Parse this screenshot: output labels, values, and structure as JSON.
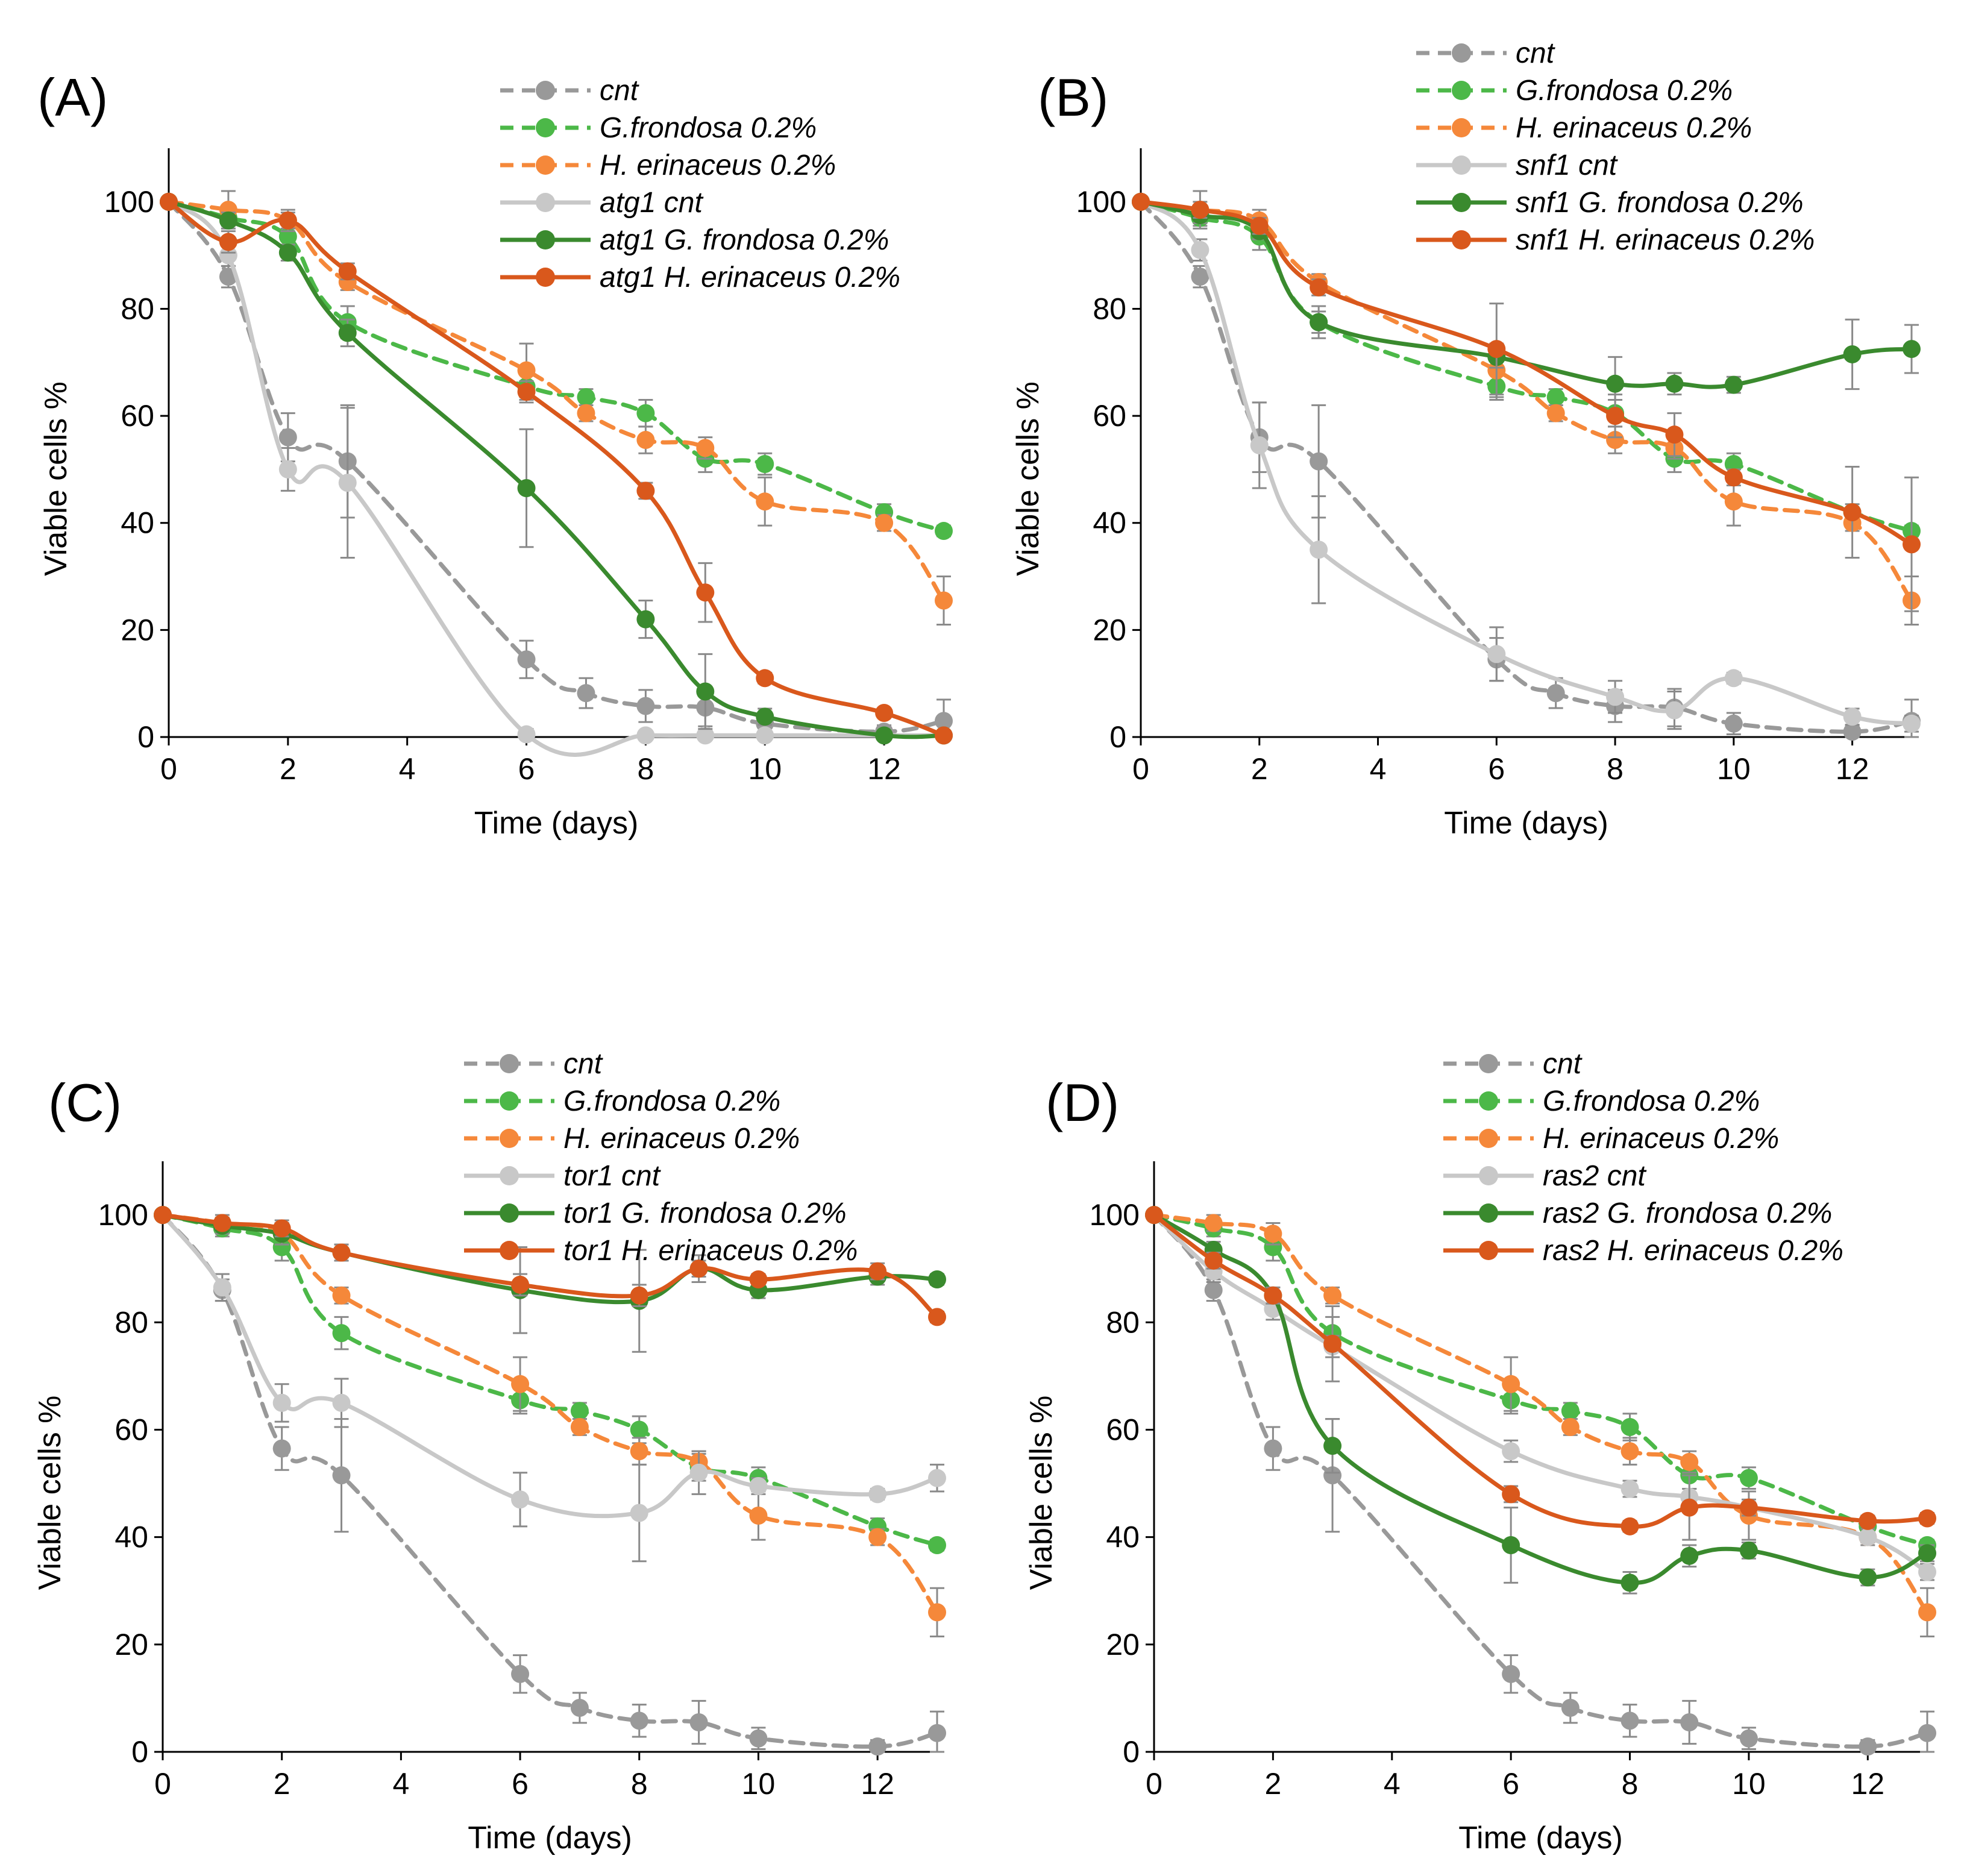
{
  "chart_data": [
    {
      "type": "line",
      "panel_label": "(A)",
      "xlabel": "Time (days)",
      "ylabel": "Viable cells %",
      "xlim": [
        0,
        13
      ],
      "ylim": [
        0,
        110
      ],
      "xticks": [
        "0",
        "2",
        "4",
        "6",
        "8",
        "10",
        "12"
      ],
      "yticks": [
        "0",
        "20",
        "40",
        "60",
        "80",
        "100"
      ],
      "legend_position": "top-right",
      "series": [
        {
          "name": "cnt",
          "color": "#999999",
          "dashed": true,
          "x": [
            0,
            1,
            2,
            3,
            6,
            7,
            8,
            9,
            10,
            12,
            13
          ],
          "y": [
            100,
            86,
            56,
            51.5,
            14.5,
            8.2,
            5.8,
            5.5,
            2.5,
            1,
            3
          ],
          "err": [
            0,
            2,
            4.5,
            10.5,
            3.5,
            2.8,
            3,
            3.5,
            2,
            1.2,
            4
          ]
        },
        {
          "name": "G.frondosa 0.2%",
          "color": "#4cb848",
          "dashed": true,
          "x": [
            0,
            1,
            2,
            3,
            6,
            7,
            8,
            9,
            10,
            12,
            13
          ],
          "y": [
            100,
            97,
            93.5,
            77.5,
            65.5,
            63.5,
            60.5,
            52,
            51,
            42,
            38.5
          ],
          "err": [
            0,
            1.5,
            2.5,
            3,
            2.5,
            1.5,
            2.5,
            2.5,
            2,
            1.5,
            1
          ]
        },
        {
          "name": "H. erinaceus 0.2%",
          "color": "#f5883a",
          "dashed": true,
          "x": [
            0,
            1,
            2,
            3,
            6,
            7,
            8,
            9,
            10,
            12,
            13
          ],
          "y": [
            100,
            98.5,
            96.5,
            85,
            68.5,
            60.5,
            55.5,
            54,
            44,
            40,
            25.5
          ],
          "err": [
            0,
            3.5,
            2,
            1.5,
            5,
            1.5,
            2.5,
            2,
            4.5,
            1.5,
            4.5
          ]
        },
        {
          "name": "atg1 cnt",
          "color": "#c8c8c8",
          "dashed": false,
          "x": [
            0,
            1,
            2,
            3,
            6,
            8,
            9,
            10,
            12,
            13
          ],
          "y": [
            100,
            90,
            50,
            47.5,
            0.5,
            0.3,
            0.3,
            0.3,
            0.3,
            0.3
          ],
          "err": [
            0,
            2,
            4,
            14,
            1,
            0.5,
            0.5,
            0.5,
            0.5,
            0.5
          ]
        },
        {
          "name": "atg1 G. frondosa 0.2%",
          "color": "#3a8a2e",
          "dashed": false,
          "x": [
            0,
            1,
            2,
            3,
            6,
            8,
            9,
            10,
            12,
            13
          ],
          "y": [
            100,
            96.5,
            90.5,
            75.5,
            46.5,
            22,
            8.5,
            3.8,
            0.3,
            0.3
          ],
          "err": [
            0,
            1.5,
            1.5,
            2.5,
            11,
            3.5,
            7,
            1.5,
            0.5,
            0.5
          ]
        },
        {
          "name": "atg1 H. erinaceus 0.2%",
          "color": "#d9581c",
          "dashed": false,
          "x": [
            0,
            1,
            2,
            3,
            6,
            8,
            9,
            10,
            12,
            13
          ],
          "y": [
            100,
            92.5,
            96.5,
            87,
            64.5,
            46,
            27,
            11,
            4.5,
            0.3
          ],
          "err": [
            0,
            2,
            1.5,
            1.5,
            2,
            1.5,
            5.5,
            1,
            0.5,
            0.5
          ]
        }
      ]
    },
    {
      "type": "line",
      "panel_label": "(B)",
      "xlabel": "Time (days)",
      "ylabel": "Viable cells %",
      "xlim": [
        0,
        13
      ],
      "ylim": [
        0,
        110
      ],
      "xticks": [
        "0",
        "2",
        "4",
        "6",
        "8",
        "10",
        "12"
      ],
      "yticks": [
        "0",
        "20",
        "40",
        "60",
        "80",
        "100"
      ],
      "legend_position": "top-right",
      "series": [
        {
          "name": "cnt",
          "color": "#999999",
          "dashed": true,
          "x": [
            0,
            1,
            2,
            3,
            6,
            7,
            8,
            9,
            10,
            12,
            13
          ],
          "y": [
            100,
            86,
            56,
            51.5,
            14.5,
            8.2,
            5.8,
            5.5,
            2.5,
            1,
            3
          ],
          "err": [
            0,
            2,
            6.5,
            10.5,
            4,
            2.8,
            3,
            3.5,
            2,
            1.2,
            4
          ]
        },
        {
          "name": "G.frondosa 0.2%",
          "color": "#4cb848",
          "dashed": true,
          "x": [
            0,
            1,
            2,
            3,
            6,
            7,
            8,
            9,
            10,
            12,
            13
          ],
          "y": [
            100,
            97,
            93.5,
            77.5,
            65.5,
            63.5,
            60.5,
            52,
            51,
            42,
            38.5
          ],
          "err": [
            0,
            1.5,
            2.5,
            3,
            2.5,
            1.5,
            2.5,
            2.5,
            2,
            1.5,
            1
          ]
        },
        {
          "name": "H. erinaceus 0.2%",
          "color": "#f5883a",
          "dashed": true,
          "x": [
            0,
            1,
            2,
            3,
            6,
            7,
            8,
            9,
            10,
            12,
            13
          ],
          "y": [
            100,
            98.5,
            96.5,
            85,
            68.5,
            60.5,
            55.5,
            54,
            44,
            40,
            25.5
          ],
          "err": [
            0,
            3.5,
            2,
            1.5,
            5,
            1.5,
            2.5,
            2,
            4.5,
            1.5,
            4.5
          ]
        },
        {
          "name": "snf1 cnt",
          "color": "#c8c8c8",
          "dashed": false,
          "x": [
            0,
            1,
            2,
            3,
            6,
            8,
            9,
            10,
            12,
            13
          ],
          "y": [
            100,
            91,
            54.5,
            35,
            15.5,
            7.5,
            5,
            11,
            3.8,
            2.5
          ],
          "err": [
            0,
            2,
            8,
            10,
            5,
            3,
            3.5,
            1,
            1.5,
            1.5
          ]
        },
        {
          "name": "snf1 G. frondosa 0.2%",
          "color": "#3a8a2e",
          "dashed": false,
          "x": [
            0,
            1,
            2,
            3,
            6,
            8,
            9,
            10,
            12,
            13
          ],
          "y": [
            100,
            97.5,
            94.5,
            77.5,
            71,
            66,
            66,
            65.8,
            71.5,
            72.5
          ],
          "err": [
            0,
            1.5,
            1.5,
            2,
            2,
            5,
            2,
            1.5,
            6.5,
            4.5
          ]
        },
        {
          "name": "snf1 H. erinaceus 0.2%",
          "color": "#d9581c",
          "dashed": false,
          "x": [
            0,
            1,
            2,
            3,
            6,
            8,
            9,
            10,
            12,
            13
          ],
          "y": [
            100,
            98.5,
            95.5,
            84,
            72.5,
            60,
            56.5,
            48.5,
            42,
            36
          ],
          "err": [
            0,
            1.5,
            1.5,
            1.5,
            8.5,
            4,
            4,
            1.5,
            8.5,
            12.5
          ]
        }
      ]
    },
    {
      "type": "line",
      "panel_label": "(C)",
      "xlabel": "Time (days)",
      "ylabel": "Viable cells %",
      "xlim": [
        0,
        13
      ],
      "ylim": [
        0,
        110
      ],
      "xticks": [
        "0",
        "2",
        "4",
        "6",
        "8",
        "10",
        "12"
      ],
      "yticks": [
        "0",
        "20",
        "40",
        "60",
        "80",
        "100"
      ],
      "legend_position": "top-right",
      "series": [
        {
          "name": "cnt",
          "color": "#999999",
          "dashed": true,
          "x": [
            0,
            1,
            2,
            3,
            6,
            7,
            8,
            9,
            10,
            12,
            13
          ],
          "y": [
            100,
            86,
            56.5,
            51.5,
            14.5,
            8.2,
            5.8,
            5.5,
            2.5,
            1,
            3.5
          ],
          "err": [
            0,
            2,
            4,
            10.5,
            3.5,
            2.8,
            3,
            4,
            2,
            1.2,
            4
          ]
        },
        {
          "name": "G.frondosa 0.2%",
          "color": "#4cb848",
          "dashed": true,
          "x": [
            0,
            1,
            2,
            3,
            6,
            7,
            8,
            9,
            10,
            12,
            13
          ],
          "y": [
            100,
            97.5,
            94,
            78,
            65.5,
            63.5,
            60,
            53,
            51,
            42,
            38.5
          ],
          "err": [
            0,
            1.5,
            2.5,
            3,
            2.5,
            1.5,
            2.5,
            2.5,
            2,
            1.5,
            1
          ]
        },
        {
          "name": "H. erinaceus 0.2%",
          "color": "#f5883a",
          "dashed": true,
          "x": [
            0,
            1,
            2,
            3,
            6,
            7,
            8,
            9,
            10,
            12,
            13
          ],
          "y": [
            100,
            98.5,
            96.5,
            85,
            68.5,
            60.5,
            56,
            54,
            44,
            40,
            26
          ],
          "err": [
            0,
            1.5,
            2,
            1.5,
            5,
            1.5,
            2.5,
            2,
            4.5,
            1.5,
            4.5
          ]
        },
        {
          "name": "tor1 cnt",
          "color": "#c8c8c8",
          "dashed": false,
          "x": [
            0,
            1,
            2,
            3,
            6,
            8,
            9,
            10,
            12,
            13
          ],
          "y": [
            100,
            86.5,
            65,
            65,
            47,
            44.5,
            52,
            49.5,
            48,
            51
          ],
          "err": [
            0,
            2.5,
            3.5,
            4.5,
            5,
            9,
            4,
            1.5,
            1,
            2.5
          ]
        },
        {
          "name": "tor1 G. frondosa 0.2%",
          "color": "#3a8a2e",
          "dashed": false,
          "x": [
            0,
            1,
            2,
            3,
            6,
            8,
            9,
            10,
            12,
            13
          ],
          "y": [
            100,
            98,
            96.5,
            93,
            86,
            84,
            90,
            86,
            88.5,
            88
          ],
          "err": [
            0,
            1.5,
            2,
            1.5,
            8,
            9.5,
            2.5,
            1.5,
            1.5,
            1
          ]
        },
        {
          "name": "tor1 H. erinaceus 0.2%",
          "color": "#d9581c",
          "dashed": false,
          "x": [
            0,
            1,
            2,
            3,
            6,
            8,
            9,
            10,
            12,
            13
          ],
          "y": [
            100,
            98.5,
            97.5,
            93,
            87,
            85,
            90,
            88,
            89.5,
            81
          ],
          "err": [
            0,
            1,
            1.5,
            1.5,
            2,
            2,
            1.5,
            1,
            1.5,
            1
          ]
        }
      ]
    },
    {
      "type": "line",
      "panel_label": "(D)",
      "xlabel": "Time (days)",
      "ylabel": "Viable cells %",
      "xlim": [
        0,
        13
      ],
      "ylim": [
        0,
        110
      ],
      "xticks": [
        "0",
        "2",
        "4",
        "6",
        "8",
        "10",
        "12"
      ],
      "yticks": [
        "0",
        "20",
        "40",
        "60",
        "80",
        "100"
      ],
      "legend_position": "top-right",
      "series": [
        {
          "name": "cnt",
          "color": "#999999",
          "dashed": true,
          "x": [
            0,
            1,
            2,
            3,
            6,
            7,
            8,
            9,
            10,
            12,
            13
          ],
          "y": [
            100,
            86,
            56.5,
            51.5,
            14.5,
            8.2,
            5.8,
            5.5,
            2.5,
            1,
            3.5
          ],
          "err": [
            0,
            2,
            4,
            10.5,
            3.5,
            2.8,
            3,
            4,
            2,
            1.2,
            4
          ]
        },
        {
          "name": "G.frondosa 0.2%",
          "color": "#4cb848",
          "dashed": true,
          "x": [
            0,
            1,
            2,
            3,
            6,
            7,
            8,
            9,
            10,
            12,
            13
          ],
          "y": [
            100,
            97.5,
            94,
            78,
            65.5,
            63.5,
            60.5,
            51.5,
            51,
            42,
            38.5
          ],
          "err": [
            0,
            1.5,
            2.5,
            3,
            2.5,
            1.5,
            2.5,
            2.5,
            2,
            1.5,
            1
          ]
        },
        {
          "name": "H. erinaceus 0.2%",
          "color": "#f5883a",
          "dashed": true,
          "x": [
            0,
            1,
            2,
            3,
            6,
            7,
            8,
            9,
            10,
            12,
            13
          ],
          "y": [
            100,
            98.5,
            96.5,
            85,
            68.5,
            60.5,
            56,
            54,
            44,
            40,
            26
          ],
          "err": [
            0,
            1.5,
            2,
            1.5,
            5,
            1.5,
            2.5,
            2,
            4.5,
            1.5,
            4.5
          ]
        },
        {
          "name": "ras2 cnt",
          "color": "#c8c8c8",
          "dashed": false,
          "x": [
            0,
            1,
            2,
            3,
            6,
            8,
            9,
            10,
            12,
            13
          ],
          "y": [
            100,
            89.5,
            82.5,
            75.5,
            56,
            49,
            47.5,
            45.5,
            40,
            33.5
          ],
          "err": [
            0,
            2,
            2,
            2,
            2,
            1.5,
            1.5,
            1,
            1,
            1.5
          ]
        },
        {
          "name": "ras2 G. frondosa 0.2%",
          "color": "#3a8a2e",
          "dashed": false,
          "x": [
            0,
            1,
            2,
            3,
            6,
            8,
            9,
            10,
            12,
            13
          ],
          "y": [
            100,
            93.5,
            85,
            57,
            38.5,
            31.5,
            36.5,
            37.5,
            32.5,
            37
          ],
          "err": [
            0,
            1.5,
            1.5,
            5,
            7,
            2,
            2,
            1.5,
            1.5,
            1.5
          ]
        },
        {
          "name": "ras2 H. erinaceus 0.2%",
          "color": "#d9581c",
          "dashed": false,
          "x": [
            0,
            1,
            2,
            3,
            6,
            8,
            9,
            10,
            12,
            13
          ],
          "y": [
            100,
            91.5,
            85,
            76,
            48,
            42,
            45.5,
            45.5,
            43,
            43.5
          ],
          "err": [
            0,
            1.5,
            1.5,
            7,
            1.5,
            1,
            6,
            1.5,
            1,
            1
          ]
        }
      ]
    }
  ]
}
